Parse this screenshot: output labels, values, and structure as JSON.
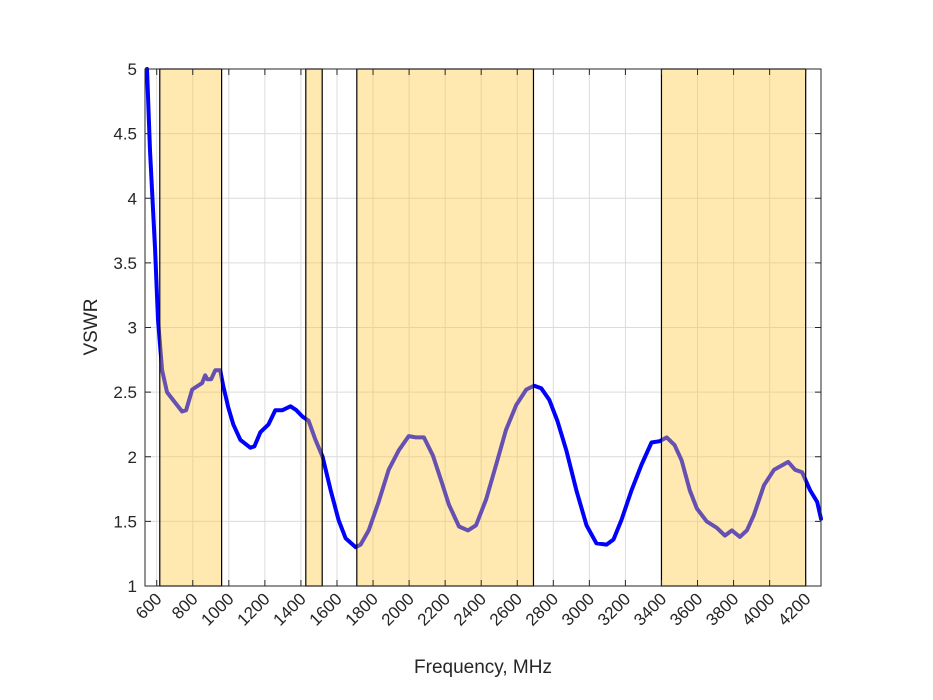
{
  "chart_data": {
    "type": "line",
    "title": "",
    "xlabel": "Frequency, MHz",
    "ylabel": "VSWR",
    "xlim": [
      535,
      4285
    ],
    "ylim": [
      1,
      5
    ],
    "grid": true,
    "xticks": [
      600,
      800,
      1000,
      1200,
      1400,
      1600,
      1800,
      2000,
      2200,
      2400,
      2600,
      2800,
      3000,
      3200,
      3400,
      3600,
      3800,
      4000,
      4200
    ],
    "yticks": [
      1,
      1.5,
      2,
      2.5,
      3,
      3.5,
      4,
      4.5,
      5
    ],
    "ytick_labels": [
      "1",
      "1.5",
      "2",
      "2.5",
      "3",
      "3.5",
      "4",
      "4.5",
      "5"
    ],
    "highlight_bands": [
      [
        617,
        960
      ],
      [
        1427,
        1518
      ],
      [
        1710,
        2690
      ],
      [
        3400,
        4200
      ]
    ],
    "colors": {
      "line": "#0000ff",
      "band_fill": "#ffc83c",
      "band_edge": "#000000",
      "grid": "#dcdcdc"
    },
    "series": [
      {
        "name": "VSWR",
        "x": [
          546,
          563,
          591,
          607,
          630,
          657,
          685,
          741,
          763,
          797,
          852,
          869,
          880,
          902,
          925,
          952,
          969,
          997,
          1025,
          1064,
          1119,
          1142,
          1175,
          1220,
          1258,
          1297,
          1342,
          1375,
          1409,
          1442,
          1481,
          1520,
          1565,
          1609,
          1648,
          1704,
          1731,
          1776,
          1831,
          1887,
          1943,
          1998,
          2037,
          2082,
          2132,
          2177,
          2221,
          2277,
          2327,
          2371,
          2427,
          2483,
          2538,
          2594,
          2650,
          2694,
          2733,
          2778,
          2822,
          2872,
          2928,
          2984,
          3039,
          3095,
          3134,
          3178,
          3234,
          3290,
          3345,
          3390,
          3429,
          3473,
          3512,
          3557,
          3596,
          3651,
          3707,
          3752,
          3791,
          3835,
          3874,
          3913,
          3969,
          4025,
          4103,
          4141,
          4180,
          4225,
          4264,
          4285
        ],
        "y": [
          5.0,
          4.37,
          3.6,
          3.06,
          2.67,
          2.5,
          2.45,
          2.35,
          2.36,
          2.52,
          2.57,
          2.63,
          2.6,
          2.6,
          2.67,
          2.67,
          2.55,
          2.38,
          2.25,
          2.13,
          2.07,
          2.08,
          2.19,
          2.25,
          2.36,
          2.36,
          2.39,
          2.36,
          2.31,
          2.28,
          2.13,
          2.0,
          1.74,
          1.51,
          1.37,
          1.3,
          1.32,
          1.43,
          1.65,
          1.9,
          2.05,
          2.16,
          2.15,
          2.15,
          2.01,
          1.82,
          1.63,
          1.46,
          1.43,
          1.47,
          1.67,
          1.94,
          2.21,
          2.4,
          2.52,
          2.55,
          2.53,
          2.44,
          2.28,
          2.05,
          1.74,
          1.47,
          1.33,
          1.32,
          1.36,
          1.51,
          1.74,
          1.94,
          2.11,
          2.12,
          2.15,
          2.09,
          1.97,
          1.74,
          1.6,
          1.5,
          1.45,
          1.39,
          1.43,
          1.38,
          1.43,
          1.55,
          1.78,
          1.9,
          1.96,
          1.9,
          1.88,
          1.74,
          1.65,
          1.52
        ]
      }
    ]
  }
}
